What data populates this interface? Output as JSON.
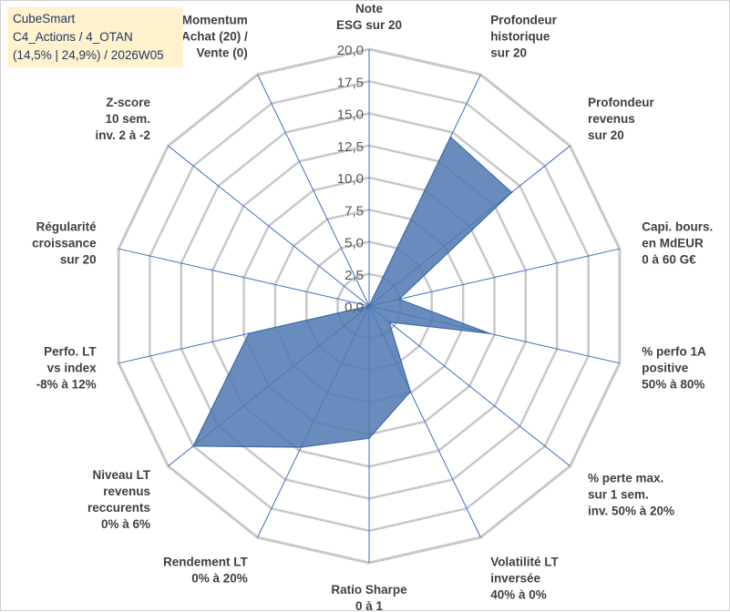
{
  "info_box": {
    "line1": "CubeSmart",
    "line2": "C4_Actions / 4_OTAN",
    "line3": "(14,5% | 24,9%) / 2026W05"
  },
  "chart_data": {
    "type": "radar",
    "title": "",
    "rmin": 0,
    "rmax": 20,
    "ticks": [
      "0,0",
      "2,5",
      "5,0",
      "7,5",
      "10,0",
      "12,5",
      "15,0",
      "17,5",
      "20,0"
    ],
    "tick_values": [
      0,
      2.5,
      5,
      7.5,
      10,
      12.5,
      15,
      17.5,
      20
    ],
    "categories": [
      [
        "Note",
        "ESG sur 20"
      ],
      [
        "Profondeur",
        "historique",
        "sur 20"
      ],
      [
        "Profondeur",
        "revenus",
        "sur 20"
      ],
      [
        "Capi. bours.",
        "en MdEUR",
        "0 à 60 G€"
      ],
      [
        "% perfo 1A",
        "positive",
        "50% à 80%"
      ],
      [
        "% perte max.",
        "sur 1 sem.",
        "inv. 50% à 20%"
      ],
      [
        "Volatilité LT",
        "inversée",
        "40% à 0%"
      ],
      [
        "Ratio Sharpe",
        "0 à 1"
      ],
      [
        "Rendement LT",
        "0% à 20%"
      ],
      [
        "Niveau LT",
        "revenus",
        "reccurents",
        "0% à 6%"
      ],
      [
        "Perfo. LT",
        "vs index",
        "-8% à 12%"
      ],
      [
        "Régularité",
        "croissance",
        "sur 20"
      ],
      [
        "Z-score",
        "10 sem.",
        "inv. 2 à -2"
      ],
      [
        "Momentum",
        "Achat (20) /",
        "Vente (0)"
      ]
    ],
    "series": [
      {
        "name": "CubeSmart",
        "values": [
          0,
          14.6,
          14.2,
          2.4,
          9.6,
          2.0,
          7.4,
          10.3,
          12.2,
          17.5,
          9.6,
          0,
          0,
          0
        ],
        "fill": "#4f78b0",
        "stroke": "#3f6aa8"
      }
    ],
    "grid_color": "#c8c8c8",
    "spoke_color": "#3a6fc4"
  }
}
